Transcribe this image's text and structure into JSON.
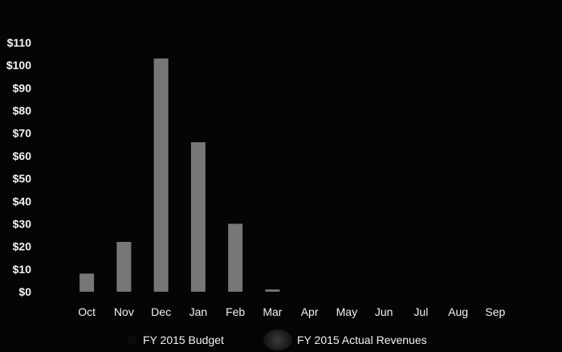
{
  "chart_data": {
    "type": "bar",
    "categories": [
      "Oct",
      "Nov",
      "Dec",
      "Jan",
      "Feb",
      "Mar",
      "Apr",
      "May",
      "Jun",
      "Jul",
      "Aug",
      "Sep"
    ],
    "series": [
      {
        "name": "FY 2015 Budget",
        "values": [
          null,
          null,
          null,
          null,
          null,
          null,
          null,
          null,
          null,
          null,
          null,
          null
        ]
      },
      {
        "name": "FY 2015 Actual Revenues",
        "values": [
          8,
          22,
          103,
          66,
          30,
          1,
          null,
          null,
          null,
          null,
          null,
          null
        ]
      }
    ],
    "y_tick_labels": [
      "$0",
      "$10",
      "$20",
      "$30",
      "$40",
      "$50",
      "$60",
      "$70",
      "$80",
      "$90",
      "$100",
      "$110"
    ],
    "ylim": [
      0,
      110
    ],
    "grid": false,
    "legend_position": "bottom",
    "colors": {
      "background": "#050505",
      "actual_bar": "#8c8c8c",
      "text": "#f2f2f2"
    }
  }
}
